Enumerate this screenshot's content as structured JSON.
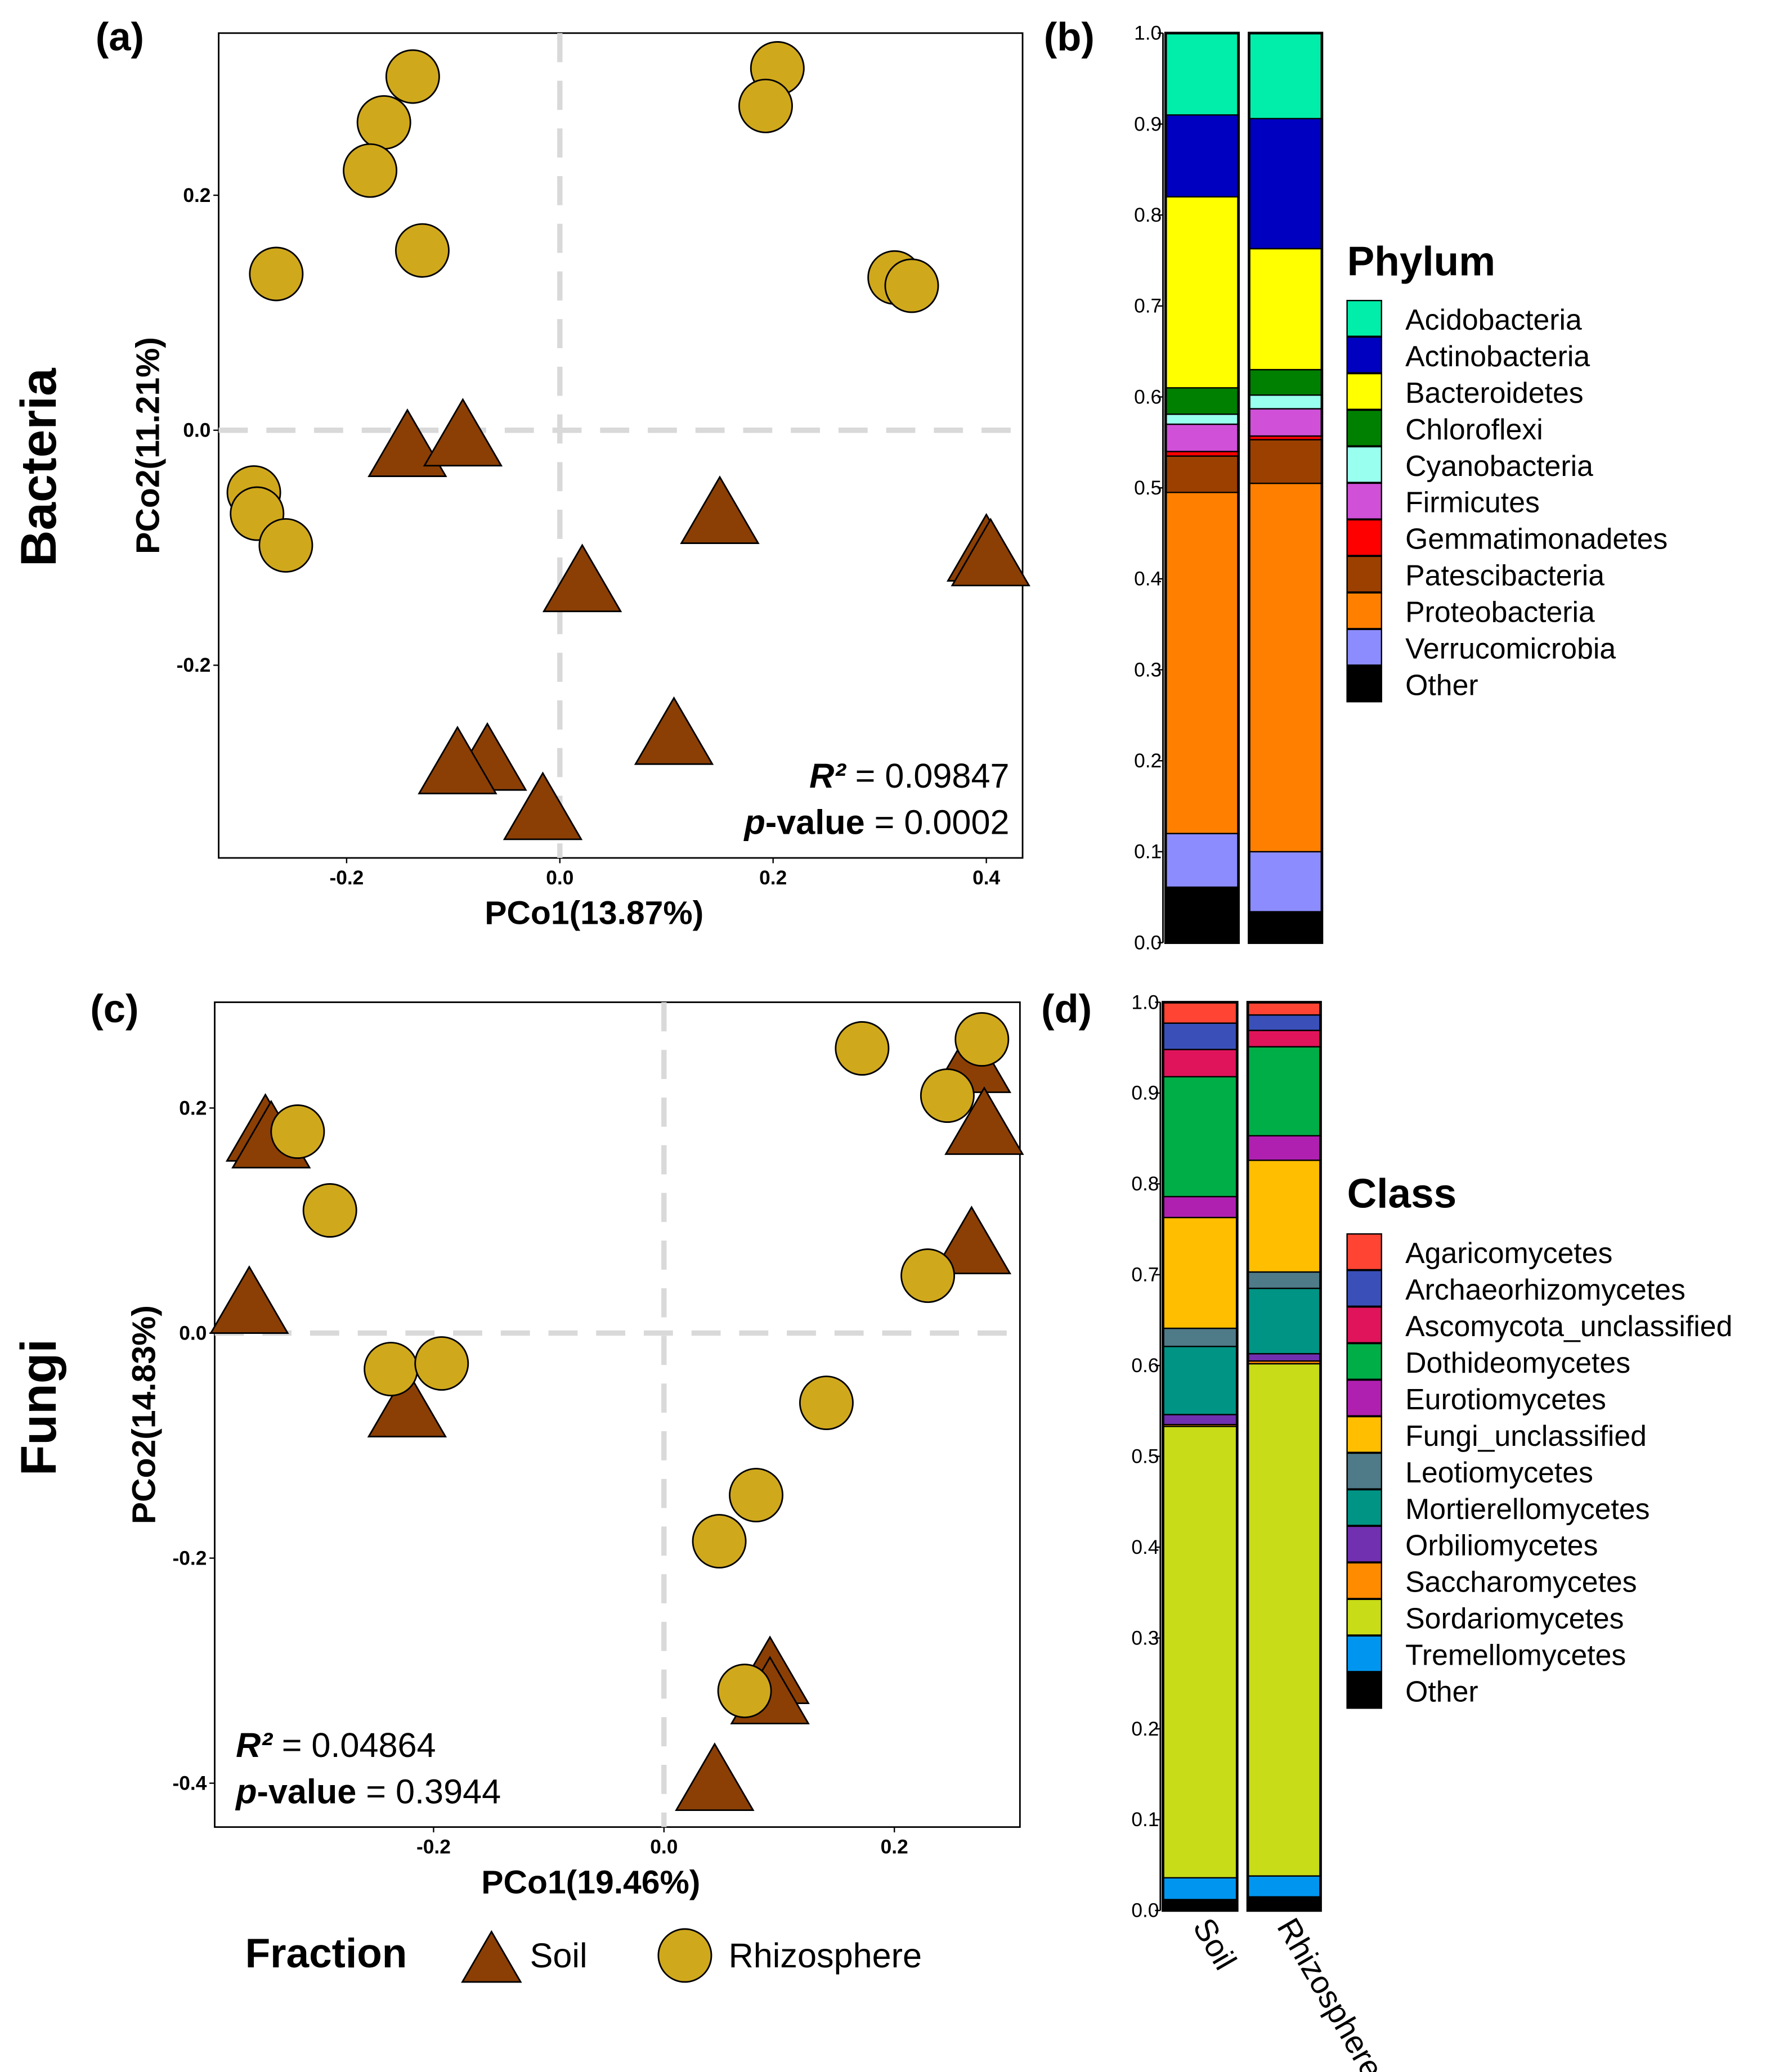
{
  "panel_labels": {
    "a": "(a)",
    "b": "(b)",
    "c": "(c)",
    "d": "(d)"
  },
  "row_labels": {
    "bacteria": "Bacteria",
    "fungi": "Fungi"
  },
  "fraction_legend": {
    "title": "Fraction",
    "soil": "Soil",
    "rhizosphere": "Rhizosphere"
  },
  "colors": {
    "soil": "#8B3F05",
    "rhizosphere": "#D0A81C",
    "dash": "#D9D9D9"
  },
  "chart_data": [
    {
      "id": "a",
      "type": "scatter",
      "xlabel": "PCo1(13.87%)",
      "ylabel": "PCo2(11.21%)",
      "xlim": [
        -0.32,
        0.434
      ],
      "ylim": [
        -0.364,
        0.338
      ],
      "xticks": [
        -0.2,
        0.0,
        0.2,
        0.4
      ],
      "xtick_labels": [
        "-0.2",
        "0.0",
        "0.2",
        "0.4"
      ],
      "yticks": [
        -0.2,
        0.0,
        0.2
      ],
      "ytick_labels": [
        "-0.2",
        "0.0",
        "0.2"
      ],
      "stats": {
        "r2_label": "R²",
        "r2_value": " = 0.09847",
        "p_label": "p",
        "p_suffix": "-value",
        "p_value": " = 0.0002",
        "position": "bottom-right"
      },
      "series": [
        {
          "name": "Soil",
          "marker": "triangle",
          "points": [
            [
              -0.143,
              -0.02
            ],
            [
              -0.091,
              -0.011
            ],
            [
              0.15,
              -0.077
            ],
            [
              0.021,
              -0.135
            ],
            [
              0.4,
              -0.109
            ],
            [
              0.404,
              -0.113
            ],
            [
              0.107,
              -0.265
            ],
            [
              -0.068,
              -0.287
            ],
            [
              -0.096,
              -0.29
            ],
            [
              -0.016,
              -0.329
            ]
          ]
        },
        {
          "name": "Rhizosphere",
          "marker": "circle",
          "points": [
            [
              -0.138,
              0.301
            ],
            [
              -0.165,
              0.262
            ],
            [
              -0.178,
              0.221
            ],
            [
              -0.129,
              0.153
            ],
            [
              -0.266,
              0.133
            ],
            [
              0.204,
              0.308
            ],
            [
              0.193,
              0.276
            ],
            [
              0.314,
              0.13
            ],
            [
              0.33,
              0.123
            ],
            [
              -0.287,
              -0.053
            ],
            [
              -0.284,
              -0.071
            ],
            [
              -0.257,
              -0.098
            ]
          ]
        }
      ]
    },
    {
      "id": "c",
      "type": "scatter",
      "xlabel": "PCo1(19.46%)",
      "ylabel": "PCo2(14.83%)",
      "xlim": [
        -0.39,
        0.309
      ],
      "ylim": [
        -0.439,
        0.294
      ],
      "xticks": [
        -0.2,
        0.0,
        0.2
      ],
      "xtick_labels": [
        "-0.2",
        "0.0",
        "0.2"
      ],
      "yticks": [
        -0.4,
        -0.2,
        0.0,
        0.2
      ],
      "ytick_labels": [
        "-0.4",
        "-0.2",
        "0.0",
        "0.2"
      ],
      "stats": {
        "r2_label": "R²",
        "r2_value": " = 0.04864",
        "p_label": "p",
        "p_suffix": "-value",
        "p_value": " = 0.3944",
        "position": "bottom-left"
      },
      "series": [
        {
          "name": "Soil",
          "marker": "triangle",
          "points": [
            [
              -0.346,
              0.173
            ],
            [
              -0.341,
              0.167
            ],
            [
              0.267,
              0.234
            ],
            [
              0.278,
              0.179
            ],
            [
              0.267,
              0.073
            ],
            [
              -0.36,
              0.02
            ],
            [
              -0.223,
              -0.072
            ],
            [
              0.092,
              -0.309
            ],
            [
              0.092,
              -0.327
            ],
            [
              0.044,
              -0.404
            ]
          ]
        },
        {
          "name": "Rhizosphere",
          "marker": "circle",
          "points": [
            [
              0.172,
              0.253
            ],
            [
              0.276,
              0.261
            ],
            [
              0.246,
              0.211
            ],
            [
              0.229,
              0.051
            ],
            [
              -0.318,
              0.179
            ],
            [
              -0.29,
              0.109
            ],
            [
              -0.237,
              -0.032
            ],
            [
              -0.193,
              -0.027
            ],
            [
              0.141,
              -0.062
            ],
            [
              0.08,
              -0.144
            ],
            [
              0.048,
              -0.185
            ],
            [
              0.07,
              -0.318
            ]
          ]
        }
      ]
    },
    {
      "id": "b",
      "type": "bar",
      "stacked": true,
      "categories": [
        "Soil",
        "Rhizosphere"
      ],
      "ylim": [
        0,
        1
      ],
      "yticks": [
        0,
        0.1,
        0.2,
        0.3,
        0.4,
        0.5,
        0.6,
        0.7,
        0.8,
        0.9,
        1.0
      ],
      "ytick_labels": [
        "0.0",
        "0.1",
        "0.2",
        "0.3",
        "0.4",
        "0.5",
        "0.6",
        "0.7",
        "0.8",
        "0.9",
        "1.0"
      ],
      "legend_title": "Phylum",
      "legend_position": "right",
      "series": [
        {
          "name": "Acidobacteria",
          "color": "#00EEAA",
          "values": [
            0.09,
            0.094
          ]
        },
        {
          "name": "Actinobacteria",
          "color": "#0000C0",
          "values": [
            0.09,
            0.143
          ]
        },
        {
          "name": "Bacteroidetes",
          "color": "#FFFF00",
          "values": [
            0.21,
            0.133
          ]
        },
        {
          "name": "Chloroflexi",
          "color": "#008000",
          "values": [
            0.029,
            0.028
          ]
        },
        {
          "name": "Cyanobacteria",
          "color": "#99FFEE",
          "values": [
            0.011,
            0.015
          ]
        },
        {
          "name": "Firmicutes",
          "color": "#D050D8",
          "values": [
            0.03,
            0.03
          ]
        },
        {
          "name": "Gemmatimonadetes",
          "color": "#FF0000",
          "values": [
            0.005,
            0.004
          ]
        },
        {
          "name": "Patescibacteria",
          "color": "#9C4000",
          "values": [
            0.04,
            0.048
          ]
        },
        {
          "name": "Proteobacteria",
          "color": "#FF8000",
          "values": [
            0.375,
            0.405
          ]
        },
        {
          "name": "Verrucomicrobia",
          "color": "#8C8CFF",
          "values": [
            0.059,
            0.066
          ]
        },
        {
          "name": "Other",
          "color": "#000000",
          "values": [
            0.061,
            0.034
          ]
        }
      ]
    },
    {
      "id": "d",
      "type": "bar",
      "stacked": true,
      "categories": [
        "Soil",
        "Rhizosphere"
      ],
      "ylim": [
        0,
        1
      ],
      "yticks": [
        0,
        0.1,
        0.2,
        0.3,
        0.4,
        0.5,
        0.6,
        0.7,
        0.8,
        0.9,
        1.0
      ],
      "ytick_labels": [
        "0.0",
        "0.1",
        "0.2",
        "0.3",
        "0.4",
        "0.5",
        "0.6",
        "0.7",
        "0.8",
        "0.9",
        "1.0"
      ],
      "legend_title": "Class",
      "legend_position": "right",
      "series": [
        {
          "name": "Agaricomycetes",
          "color": "#FF4433",
          "values": [
            0.023,
            0.014
          ]
        },
        {
          "name": "Archaeorhizomycetes",
          "color": "#3A50B8",
          "values": [
            0.029,
            0.017
          ]
        },
        {
          "name": "Ascomycota_unclassified",
          "color": "#E0145A",
          "values": [
            0.03,
            0.018
          ]
        },
        {
          "name": "Dothideomycetes",
          "color": "#00AE48",
          "values": [
            0.132,
            0.098
          ]
        },
        {
          "name": "Eurotiomycetes",
          "color": "#B020B0",
          "values": [
            0.023,
            0.027
          ]
        },
        {
          "name": "Fungi_unclassified",
          "color": "#FFBE00",
          "values": [
            0.122,
            0.123
          ]
        },
        {
          "name": "Leotiomycetes",
          "color": "#4F7A88",
          "values": [
            0.02,
            0.018
          ]
        },
        {
          "name": "Mortierellomycetes",
          "color": "#009485",
          "values": [
            0.075,
            0.072
          ]
        },
        {
          "name": "Orbiliomycetes",
          "color": "#7030B0",
          "values": [
            0.011,
            0.008
          ]
        },
        {
          "name": "Saccharomycetes",
          "color": "#FF8C00",
          "values": [
            0.002,
            0.003
          ]
        },
        {
          "name": "Sordariomycetes",
          "color": "#C8DC18",
          "values": [
            0.497,
            0.564
          ]
        },
        {
          "name": "Tremellomycetes",
          "color": "#0096F0",
          "values": [
            0.024,
            0.023
          ]
        },
        {
          "name": "Other",
          "color": "#000000",
          "values": [
            0.012,
            0.015
          ]
        }
      ]
    }
  ]
}
